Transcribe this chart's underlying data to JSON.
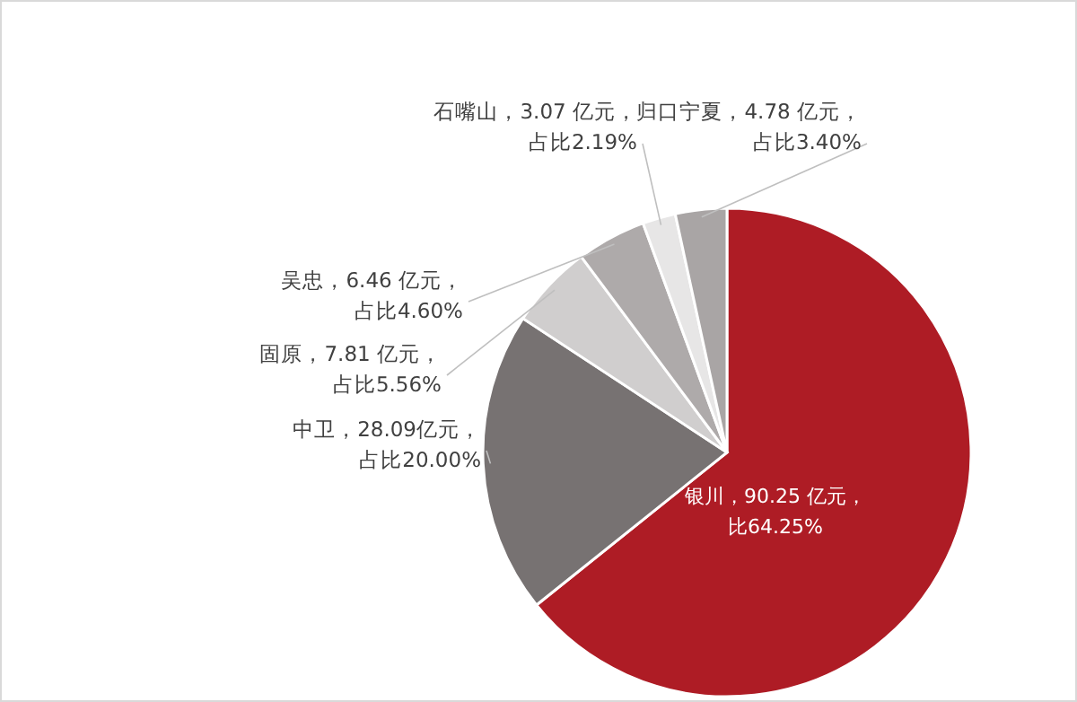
{
  "chart_data": {
    "type": "pie",
    "categories": [
      "银川",
      "中卫",
      "固原",
      "吴忠",
      "石嘴山",
      "归口宁夏"
    ],
    "values": [
      90.25,
      28.09,
      7.81,
      6.46,
      3.07,
      4.78
    ],
    "colors": [
      "#ae1c25",
      "#777272",
      "#d0cece",
      "#aeaaaa",
      "#e7e6e6",
      "#a9a5a5"
    ],
    "value_labels": [
      "，90.25 亿元，比64.25%",
      "，28.09亿元，占比20.00%",
      "，7.81 亿元，占比5.56%",
      "，6.46 亿元，占比4.60%",
      "，3.07 亿元，占比2.19%",
      "，4.78 亿元，占比3.40%"
    ]
  }
}
